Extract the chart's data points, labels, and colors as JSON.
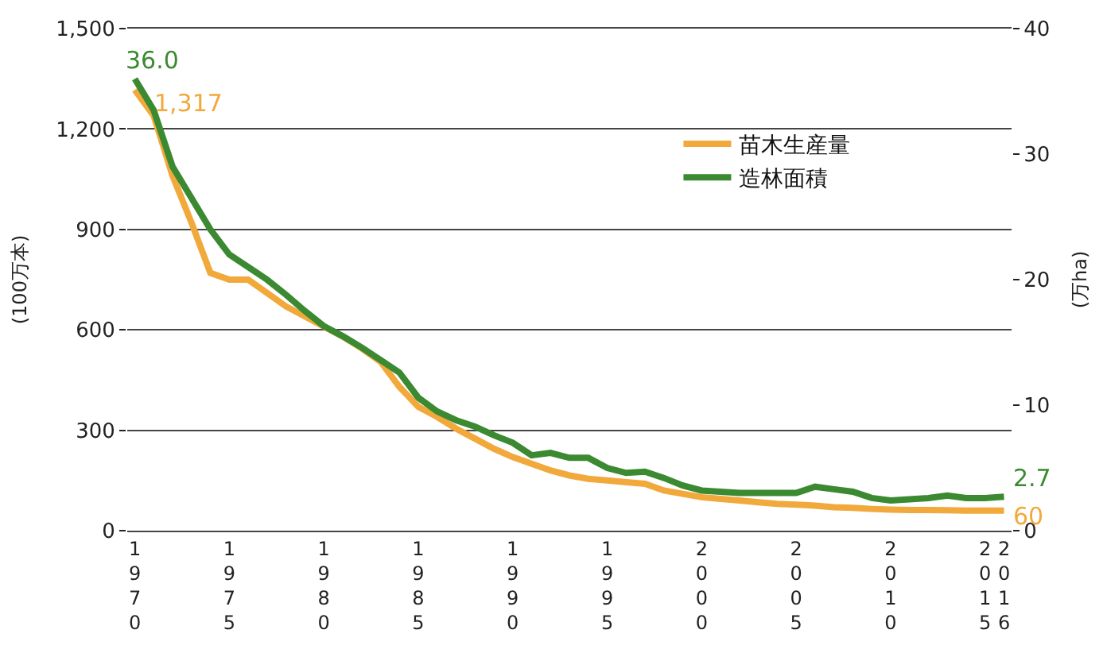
{
  "chart_data": {
    "type": "line",
    "ylabel": "(100万本)",
    "y2label": "(万ha)",
    "x": [
      1970,
      1971,
      1972,
      1973,
      1974,
      1975,
      1976,
      1977,
      1978,
      1979,
      1980,
      1981,
      1982,
      1983,
      1984,
      1985,
      1986,
      1987,
      1988,
      1989,
      1990,
      1991,
      1992,
      1993,
      1994,
      1995,
      1996,
      1997,
      1998,
      1999,
      2000,
      2001,
      2002,
      2003,
      2004,
      2005,
      2006,
      2007,
      2008,
      2009,
      2010,
      2011,
      2012,
      2013,
      2014,
      2015,
      2016
    ],
    "series": [
      {
        "name": "苗木生産量",
        "color": "#f2a93b",
        "values": [
          1317,
          1240,
          1060,
          920,
          770,
          750,
          750,
          710,
          670,
          640,
          610,
          580,
          545,
          505,
          430,
          370,
          340,
          305,
          275,
          245,
          220,
          200,
          180,
          165,
          155,
          150,
          145,
          140,
          120,
          110,
          100,
          95,
          90,
          85,
          80,
          78,
          75,
          70,
          68,
          65,
          63,
          62,
          62,
          61,
          60,
          60,
          60
        ],
        "value_labels": [
          "1,317",
          null,
          null,
          null,
          null,
          null,
          null,
          null,
          null,
          null,
          null,
          null,
          null,
          null,
          null,
          null,
          null,
          null,
          null,
          null,
          null,
          null,
          null,
          null,
          null,
          null,
          null,
          null,
          null,
          null,
          null,
          null,
          null,
          null,
          null,
          null,
          null,
          null,
          null,
          null,
          null,
          null,
          null,
          null,
          null,
          null,
          "60"
        ]
      },
      {
        "name": "造林面積",
        "color": "#3b8a31",
        "axis": "y2",
        "values": [
          36.0,
          33.5,
          29.0,
          26.5,
          24.0,
          22.0,
          21.0,
          20.0,
          18.8,
          17.5,
          16.3,
          15.5,
          14.6,
          13.6,
          12.6,
          10.6,
          9.5,
          8.8,
          8.3,
          7.6,
          7.0,
          6.0,
          6.2,
          5.8,
          5.8,
          5.0,
          4.6,
          4.7,
          4.2,
          3.6,
          3.2,
          3.1,
          3.0,
          3.0,
          3.0,
          3.0,
          3.5,
          3.3,
          3.1,
          2.6,
          2.4,
          2.5,
          2.6,
          2.8,
          2.6,
          2.6,
          2.7
        ],
        "value_labels": [
          "36.0",
          null,
          null,
          null,
          null,
          null,
          null,
          null,
          null,
          null,
          null,
          null,
          null,
          null,
          null,
          null,
          null,
          null,
          null,
          null,
          null,
          null,
          null,
          null,
          null,
          null,
          null,
          null,
          null,
          null,
          null,
          null,
          null,
          null,
          null,
          null,
          null,
          null,
          null,
          null,
          null,
          null,
          null,
          null,
          null,
          null,
          "2.7"
        ]
      }
    ],
    "xlim": [
      1969.6,
      2016.4
    ],
    "xticks": [
      1970,
      1975,
      1980,
      1985,
      1990,
      1995,
      2000,
      2005,
      2010,
      2015,
      2016
    ],
    "ylim": [
      0,
      1500
    ],
    "yticks": [
      0,
      300,
      600,
      900,
      {
        "value": 1200,
        "label": "1,200"
      },
      {
        "value": 1500,
        "label": "1,500"
      }
    ],
    "y2lim": [
      0,
      40
    ],
    "y2ticks": [
      0,
      10,
      20,
      30,
      40
    ],
    "grid": "y",
    "legend": "top right",
    "marker": "none",
    "line_style": "solid"
  }
}
